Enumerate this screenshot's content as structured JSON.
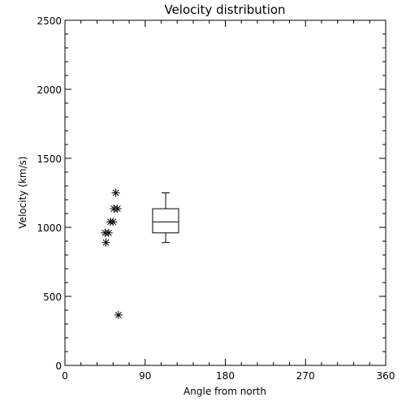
{
  "chart_data": {
    "type": "scatter",
    "title": "Velocity distribution",
    "xlabel": "Angle from north",
    "ylabel": "Velocity (km/s)",
    "xlim": [
      0,
      360
    ],
    "ylim": [
      0,
      2500
    ],
    "xticks": [
      0,
      90,
      180,
      270,
      360
    ],
    "yticks": [
      0,
      500,
      1000,
      1500,
      2000,
      2500
    ],
    "grid": false,
    "points": [
      {
        "x": 60,
        "y": 365
      },
      {
        "x": 46,
        "y": 890
      },
      {
        "x": 45,
        "y": 960
      },
      {
        "x": 49,
        "y": 960
      },
      {
        "x": 51,
        "y": 1040
      },
      {
        "x": 54,
        "y": 1040
      },
      {
        "x": 55,
        "y": 1135
      },
      {
        "x": 59,
        "y": 1135
      },
      {
        "x": 57,
        "y": 1250
      }
    ],
    "boxplot": {
      "x": 113,
      "whisker_low": 890,
      "q1": 960,
      "median": 1040,
      "q3": 1135,
      "whisker_high": 1250
    }
  }
}
